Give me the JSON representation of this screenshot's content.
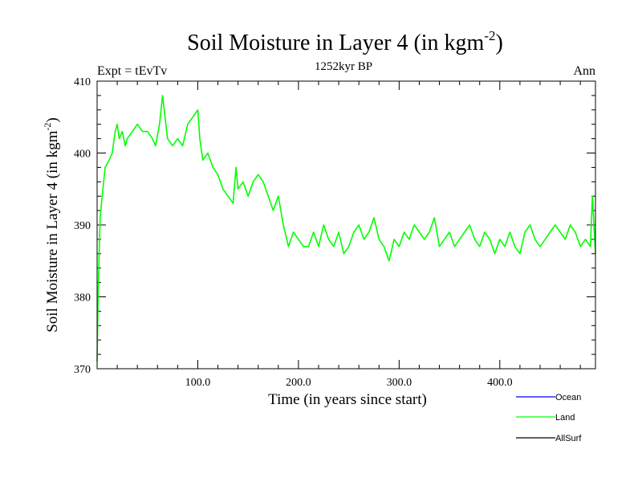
{
  "chart_data": {
    "type": "line",
    "title_main": "Soil Moisture in Layer 4 (in kgm",
    "title_exp": "-2",
    "title_close": ")",
    "subtitle_left": "Expt = tEvTv",
    "subtitle_center": "1252kyr BP",
    "subtitle_right": "Ann",
    "xlabel": "Time (in years since start)",
    "ylabel_main": "Soil Moisture in Layer 4 (in kgm",
    "ylabel_exp": "-2",
    "ylabel_close": ")",
    "xlim": [
      0,
      495
    ],
    "ylim": [
      370,
      410
    ],
    "xticks": [
      100,
      200,
      300,
      400
    ],
    "xtick_labels": [
      "100.0",
      "200.0",
      "300.0",
      "400.0"
    ],
    "yticks": [
      370,
      380,
      390,
      400,
      410
    ],
    "ytick_labels": [
      "370",
      "380",
      "390",
      "400",
      "410"
    ],
    "legend": [
      {
        "name": "Ocean",
        "color": "#0000ff"
      },
      {
        "name": "Land",
        "color": "#00ff00"
      },
      {
        "name": "AllSurf",
        "color": "#000000"
      }
    ],
    "series": [
      {
        "name": "Land",
        "color": "#00ff00",
        "x": [
          0,
          1,
          2,
          3,
          5,
          8,
          12,
          15,
          18,
          20,
          22,
          25,
          28,
          30,
          35,
          40,
          45,
          50,
          55,
          58,
          62,
          65,
          70,
          75,
          80,
          85,
          90,
          95,
          100,
          102,
          105,
          110,
          115,
          120,
          125,
          130,
          135,
          138,
          140,
          145,
          150,
          155,
          160,
          165,
          170,
          175,
          180,
          185,
          190,
          195,
          200,
          205,
          210,
          215,
          220,
          225,
          230,
          235,
          240,
          245,
          250,
          255,
          260,
          265,
          270,
          275,
          280,
          285,
          290,
          295,
          300,
          305,
          310,
          315,
          320,
          325,
          330,
          335,
          340,
          345,
          350,
          355,
          360,
          365,
          370,
          375,
          380,
          385,
          390,
          395,
          400,
          405,
          410,
          415,
          420,
          425,
          430,
          435,
          440,
          445,
          450,
          455,
          460,
          465,
          470,
          475,
          480,
          485,
          490,
          492,
          495
        ],
        "values": [
          371,
          380,
          386,
          391,
          394,
          398,
          399,
          400,
          403,
          404,
          402,
          403,
          401,
          402,
          403,
          404,
          403,
          403,
          402,
          401,
          404,
          408,
          402,
          401,
          402,
          401,
          404,
          405,
          406,
          402,
          399,
          400,
          398,
          397,
          395,
          394,
          393,
          398,
          395,
          396,
          394,
          396,
          397,
          396,
          394,
          392,
          394,
          390,
          387,
          389,
          388,
          387,
          387,
          389,
          387,
          390,
          388,
          387,
          389,
          386,
          387,
          389,
          390,
          388,
          389,
          391,
          388,
          387,
          385,
          388,
          387,
          389,
          388,
          390,
          389,
          388,
          389,
          391,
          387,
          388,
          389,
          387,
          388,
          389,
          390,
          388,
          387,
          389,
          388,
          386,
          388,
          387,
          389,
          387,
          386,
          389,
          390,
          388,
          387,
          388,
          389,
          390,
          389,
          388,
          390,
          389,
          387,
          388,
          387,
          394,
          386
        ]
      }
    ]
  }
}
